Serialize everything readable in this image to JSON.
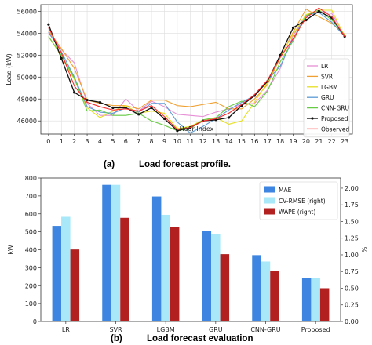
{
  "chart_data": [
    {
      "type": "line",
      "caption_tag": "(a)",
      "caption_text": "Load forecast profile.",
      "xlabel": "Hour Index",
      "ylabel": "Load (kW)",
      "x": [
        0,
        1,
        2,
        3,
        4,
        5,
        6,
        7,
        8,
        9,
        10,
        11,
        12,
        13,
        14,
        15,
        16,
        17,
        18,
        19,
        20,
        21,
        22,
        23
      ],
      "xlim": [
        -0.6,
        23.6
      ],
      "ylim": [
        44800,
        56600
      ],
      "yticks": [
        46000,
        48000,
        50000,
        52000,
        54000,
        56000
      ],
      "grid": true,
      "legend_position": "right",
      "series": [
        {
          "name": "LR",
          "color": "#e68fd6",
          "values": [
            54000,
            52500,
            51300,
            47600,
            46500,
            46500,
            48000,
            46900,
            47800,
            47300,
            46600,
            46500,
            46400,
            46800,
            47100,
            47500,
            47600,
            48800,
            50800,
            53800,
            55500,
            56000,
            55800,
            53800
          ]
        },
        {
          "name": "SVR",
          "color": "#f0a030",
          "values": [
            54200,
            52600,
            50800,
            47900,
            47600,
            47400,
            47400,
            47100,
            47900,
            47900,
            47400,
            47300,
            47500,
            47700,
            47100,
            47100,
            48000,
            49300,
            51800,
            54100,
            56200,
            55500,
            54900,
            53900
          ]
        },
        {
          "name": "LGBM",
          "color": "#e6e020",
          "values": [
            53700,
            51900,
            49800,
            47200,
            46300,
            46900,
            47400,
            46700,
            46900,
            46700,
            45300,
            45500,
            46100,
            46300,
            45700,
            46000,
            47700,
            49500,
            51900,
            53900,
            55700,
            56100,
            56100,
            53700
          ]
        },
        {
          "name": "GRU",
          "color": "#5b9bd5",
          "values": [
            54100,
            52300,
            50000,
            47300,
            46800,
            46700,
            47200,
            46800,
            47600,
            47600,
            45900,
            44900,
            45500,
            46200,
            47000,
            47700,
            48300,
            49700,
            51000,
            53500,
            55600,
            55900,
            55000,
            53700
          ]
        },
        {
          "name": "CNN-GRU",
          "color": "#66cc44",
          "values": [
            53700,
            52000,
            49900,
            46900,
            47000,
            46500,
            46500,
            46700,
            46000,
            45600,
            45100,
            45300,
            46100,
            46300,
            47300,
            47800,
            47300,
            48700,
            51400,
            53300,
            55600,
            56100,
            55200,
            53800
          ]
        },
        {
          "name": "Proposed",
          "color": "#111111",
          "values": [
            54800,
            51700,
            48600,
            47900,
            47700,
            47200,
            47200,
            46600,
            47200,
            46200,
            45100,
            45400,
            46000,
            46100,
            46300,
            47400,
            48300,
            49600,
            52000,
            54500,
            55200,
            56000,
            55400,
            53700
          ]
        },
        {
          "name": "Observed",
          "color": "#ff2a2a",
          "values": [
            54500,
            52200,
            49200,
            47700,
            47300,
            47000,
            47100,
            46900,
            47400,
            46400,
            45200,
            45400,
            46000,
            46200,
            46700,
            47500,
            48400,
            49700,
            51800,
            53500,
            55400,
            56300,
            55500,
            53700
          ]
        }
      ]
    },
    {
      "type": "bar",
      "caption_tag": "(b)",
      "caption_text": "Load forecast evaluation",
      "ylabel": "kW",
      "ylabel_right": "%",
      "categories": [
        "LR",
        "SVR",
        "LGBM",
        "GRU",
        "CNN-GRU",
        "Proposed"
      ],
      "ylim": [
        0,
        800
      ],
      "yticks": [
        0,
        100,
        200,
        300,
        400,
        500,
        600,
        700,
        800
      ],
      "ylim_right": [
        0,
        2.1522
      ],
      "yticks_right": [
        "0.00",
        "0.25",
        "0.50",
        "0.75",
        "1.00",
        "1.25",
        "1.50",
        "1.75",
        "2.00"
      ],
      "legend_position": "top-right",
      "series": [
        {
          "name": "MAE",
          "axis": "left",
          "color": "#3d85e0",
          "values": [
            533,
            762,
            697,
            503,
            370,
            243
          ]
        },
        {
          "name": "CV-RMSE (right)",
          "axis": "right",
          "color": "#a8e8f8",
          "values": [
            1.57,
            2.05,
            1.6,
            1.31,
            0.9,
            0.655
          ]
        },
        {
          "name": "WAPE (right)",
          "axis": "right",
          "color": "#b22020",
          "values": [
            1.08,
            1.555,
            1.42,
            1.01,
            0.755,
            0.5
          ]
        }
      ]
    }
  ]
}
